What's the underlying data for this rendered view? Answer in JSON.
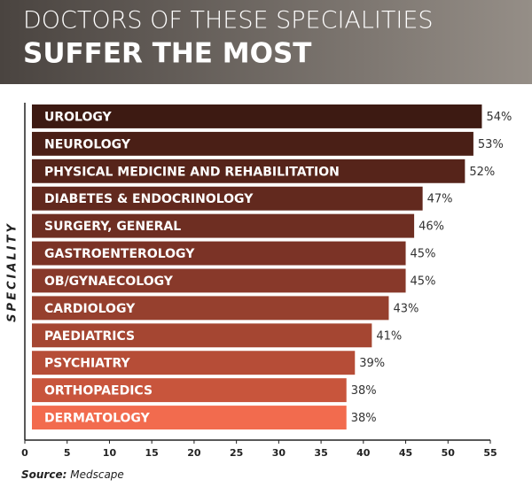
{
  "chart_data": {
    "type": "hbar",
    "title": "DOCTORS OF THESE SPECIALITIES",
    "subtitle": "SUFFER THE MOST",
    "y_label": "SPECIALITY",
    "source_label": "Source:",
    "source": "Medscape",
    "categories": [
      "UROLOGY",
      "NEUROLOGY",
      "PHYSICAL MEDICINE AND REHABILITATION",
      "DIABETES & ENDOCRINOLOGY",
      "SURGERY, GENERAL",
      "GASTROENTEROLOGY",
      "OB/GYNAECOLOGY",
      "CARDIOLOGY",
      "PAEDIATRICS",
      "PSYCHIATRY",
      "ORTHOPAEDICS",
      "DERMATOLOGY"
    ],
    "values": [
      54,
      53,
      52,
      47,
      46,
      45,
      45,
      43,
      41,
      39,
      38,
      38
    ],
    "value_labels": [
      "54%",
      "53%",
      "52%",
      "47%",
      "46%",
      "45%",
      "45%",
      "43%",
      "41%",
      "39%",
      "38%",
      "38%"
    ],
    "colors": [
      "#3d1a12",
      "#4a1f16",
      "#56241a",
      "#62291e",
      "#6e2e22",
      "#7b3326",
      "#88392a",
      "#96402e",
      "#a54632",
      "#b64d37",
      "#c8553c",
      "#f26b4e"
    ],
    "xlim": [
      0,
      55
    ],
    "xticks": [
      0,
      5,
      10,
      15,
      20,
      25,
      30,
      35,
      40,
      45,
      50,
      55
    ]
  }
}
